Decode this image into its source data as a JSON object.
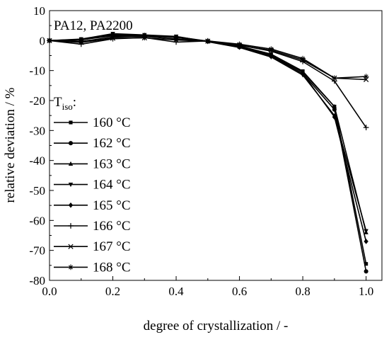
{
  "chart_data": {
    "type": "line",
    "title": "",
    "annotation": "PA12, PA2200",
    "xlabel": "degree of crystallization / -",
    "ylabel": "relative deviation / %",
    "xlim": [
      0.0,
      1.05
    ],
    "ylim": [
      -80,
      10
    ],
    "x_ticks": [
      0.0,
      0.2,
      0.4,
      0.6,
      0.8,
      1.0
    ],
    "x_tick_labels": [
      "0.0",
      "0.2",
      "0.4",
      "0.6",
      "0.8",
      "1.0"
    ],
    "y_ticks": [
      10,
      0,
      -10,
      -20,
      -30,
      -40,
      -50,
      -60,
      -70,
      -80
    ],
    "y_tick_labels": [
      "10",
      "0",
      "-10",
      "-20",
      "-30",
      "-40",
      "-50",
      "-60",
      "-70",
      "-80"
    ],
    "grid": false,
    "legend": {
      "title": "T",
      "title_sub": "iso",
      "title_suffix": ":",
      "placement": "left"
    },
    "x": [
      0.0,
      0.1,
      0.2,
      0.3,
      0.4,
      0.5,
      0.6,
      0.7,
      0.8,
      0.9,
      1.0
    ],
    "series": [
      {
        "name": "160 °C",
        "marker": "square",
        "values": [
          0,
          0.3,
          1.6,
          1.5,
          1.3,
          -0.2,
          -1.8,
          -4.5,
          -10.2,
          -22.0,
          -74.5
        ]
      },
      {
        "name": "162 °C",
        "marker": "circle",
        "values": [
          0,
          0.4,
          2.2,
          1.8,
          1.2,
          -0.3,
          -2.2,
          -5.2,
          -11.0,
          -23.0,
          -77.0
        ]
      },
      {
        "name": "163 °C",
        "marker": "triangle-up",
        "values": [
          0,
          0.2,
          2.0,
          1.6,
          1.1,
          -0.2,
          -2.0,
          -4.8,
          -10.5,
          -22.0,
          -64.0
        ]
      },
      {
        "name": "164 °C",
        "marker": "triangle-down",
        "values": [
          0,
          0.5,
          2.3,
          1.9,
          1.4,
          -0.4,
          -2.3,
          -5.5,
          -11.5,
          -25.0,
          -63.5
        ]
      },
      {
        "name": "165 °C",
        "marker": "diamond",
        "values": [
          0,
          0.3,
          1.8,
          1.7,
          1.0,
          -0.2,
          -2.1,
          -5.0,
          -11.0,
          -25.5,
          -67.0
        ]
      },
      {
        "name": "166 °C",
        "marker": "plus",
        "values": [
          0,
          -1.2,
          0.6,
          1.0,
          -0.5,
          -0.1,
          -1.5,
          -3.5,
          -7.0,
          -13.5,
          -29.0
        ]
      },
      {
        "name": "167 °C",
        "marker": "x",
        "values": [
          0,
          -0.6,
          0.8,
          0.9,
          0.2,
          -0.2,
          -1.6,
          -3.2,
          -6.5,
          -12.5,
          -13.0
        ]
      },
      {
        "name": "168 °C",
        "marker": "star",
        "values": [
          0,
          -0.3,
          1.2,
          1.4,
          0.5,
          -0.1,
          -1.2,
          -2.8,
          -6.0,
          -12.5,
          -12.0
        ]
      }
    ]
  }
}
